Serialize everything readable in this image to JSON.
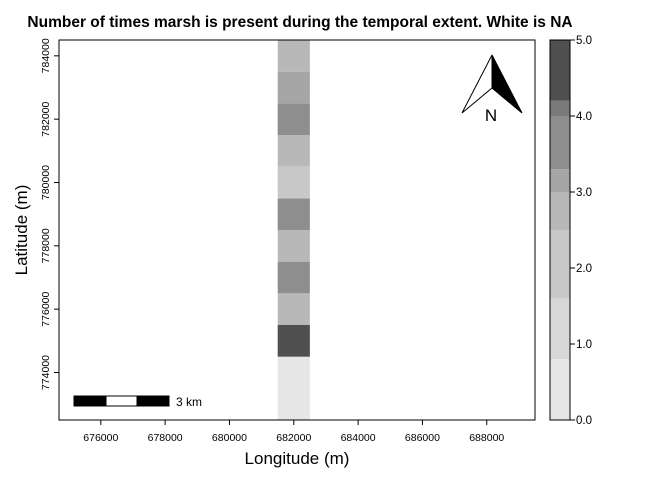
{
  "title": "Number of times marsh is present during the temporal extent. White is NA",
  "x_label": "Longitude (m)",
  "y_label": "Latitude (m)",
  "x_ticks": [
    "676000",
    "678000",
    "680000",
    "682000",
    "684000",
    "686000",
    "688000"
  ],
  "y_ticks": [
    "774000",
    "776000",
    "778000",
    "780000",
    "782000",
    "784000"
  ],
  "colorbar_ticks": [
    "0.0",
    "1.0",
    "2.0",
    "3.0",
    "4.0",
    "5.0"
  ],
  "scale_bar_label": "3 km",
  "north_label": "N",
  "map": {
    "x_range": [
      674700,
      689500
    ],
    "y_range": [
      772500,
      784500
    ],
    "column_x_range": [
      681500,
      682500
    ],
    "cells": [
      {
        "y_from": 772500,
        "y_to": 774500,
        "value": 0.2
      },
      {
        "y_from": 774500,
        "y_to": 775500,
        "value": 4.5
      },
      {
        "y_from": 775500,
        "y_to": 776500,
        "value": 2.7
      },
      {
        "y_from": 776500,
        "y_to": 777500,
        "value": 3.5
      },
      {
        "y_from": 777500,
        "y_to": 778500,
        "value": 2.7
      },
      {
        "y_from": 778500,
        "y_to": 779500,
        "value": 3.5
      },
      {
        "y_from": 779500,
        "y_to": 780500,
        "value": 1.8
      },
      {
        "y_from": 780500,
        "y_to": 781500,
        "value": 2.7
      },
      {
        "y_from": 781500,
        "y_to": 782500,
        "value": 3.5
      },
      {
        "y_from": 782500,
        "y_to": 783500,
        "value": 3.2
      },
      {
        "y_from": 783500,
        "y_to": 784500,
        "value": 2.7
      }
    ]
  },
  "colorbar": {
    "range": [
      0,
      5
    ],
    "bands": [
      {
        "from": 0.0,
        "to": 0.8,
        "color": "#e6e6e6"
      },
      {
        "from": 0.8,
        "to": 1.6,
        "color": "#d8d8d8"
      },
      {
        "from": 1.6,
        "to": 2.5,
        "color": "#c8c8c8"
      },
      {
        "from": 2.5,
        "to": 3.0,
        "color": "#b8b8b8"
      },
      {
        "from": 3.0,
        "to": 3.3,
        "color": "#a6a6a6"
      },
      {
        "from": 3.3,
        "to": 4.0,
        "color": "#8e8e8e"
      },
      {
        "from": 4.0,
        "to": 4.2,
        "color": "#7a7a7a"
      },
      {
        "from": 4.2,
        "to": 5.0,
        "color": "#505050"
      }
    ]
  }
}
